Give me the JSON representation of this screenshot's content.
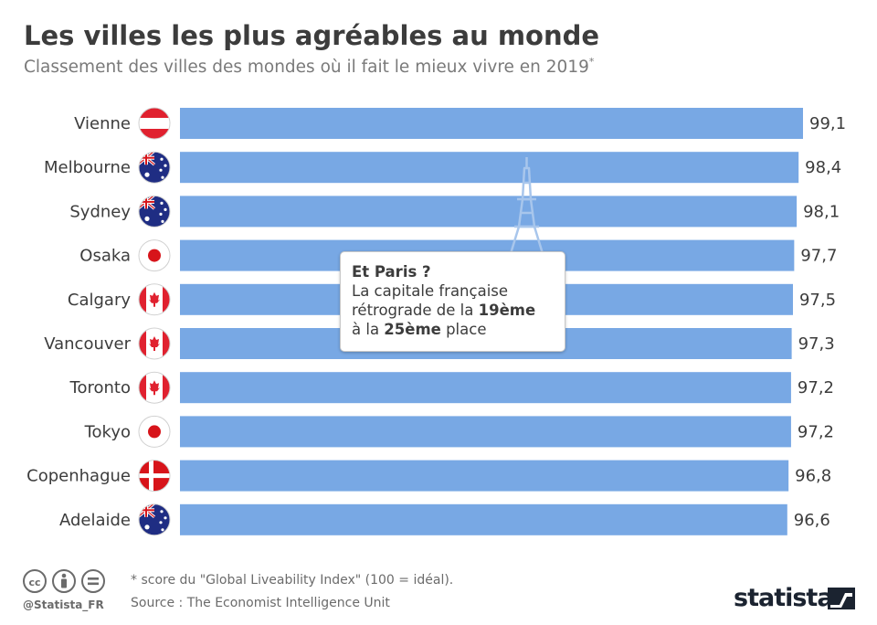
{
  "title": "Les villes les plus agréables au monde",
  "subtitle": "Classement des villes des mondes où il fait le mieux vivre en 2019",
  "subtitle_mark": "*",
  "chart_data": {
    "type": "bar",
    "orientation": "horizontal",
    "categories": [
      "Vienne",
      "Melbourne",
      "Sydney",
      "Osaka",
      "Calgary",
      "Vancouver",
      "Toronto",
      "Tokyo",
      "Copenhague",
      "Adelaide"
    ],
    "values": [
      99.1,
      98.4,
      98.1,
      97.7,
      97.5,
      97.3,
      97.2,
      97.2,
      96.8,
      96.6
    ],
    "value_labels": [
      "99,1",
      "98,4",
      "98,1",
      "97,7",
      "97,5",
      "97,3",
      "97,2",
      "97,2",
      "96,8",
      "96,6"
    ],
    "flags": [
      "austria-flag",
      "australia-flag",
      "australia-flag",
      "japan-flag",
      "canada-flag",
      "canada-flag",
      "canada-flag",
      "japan-flag",
      "denmark-flag",
      "australia-flag"
    ],
    "bar_color": "#78a8e4",
    "xlim": [
      0,
      99.1
    ],
    "grid": false,
    "legend": false
  },
  "callout": {
    "title": "Et Paris ?",
    "line1": "La capitale française",
    "line2_pre": "rétrograde de la ",
    "line2_bold": "19ème",
    "line3_pre": "à la ",
    "line3_bold": "25ème",
    "line3_post": " place",
    "icon": "eiffel-tower-icon"
  },
  "footer": {
    "handle": "@Statista_FR",
    "footnote": "* score du \"Global Liveability Index\" (100 = idéal).",
    "source": "Source : The Economist Intelligence Unit",
    "brand": "statista",
    "license_icons": [
      "cc-icon",
      "attribution-icon",
      "no-derivatives-icon"
    ]
  },
  "colors": {
    "bar": "#78a8e4",
    "text": "#3c3c3c",
    "muted": "#7a7a7a",
    "brand": "#1b2330"
  }
}
